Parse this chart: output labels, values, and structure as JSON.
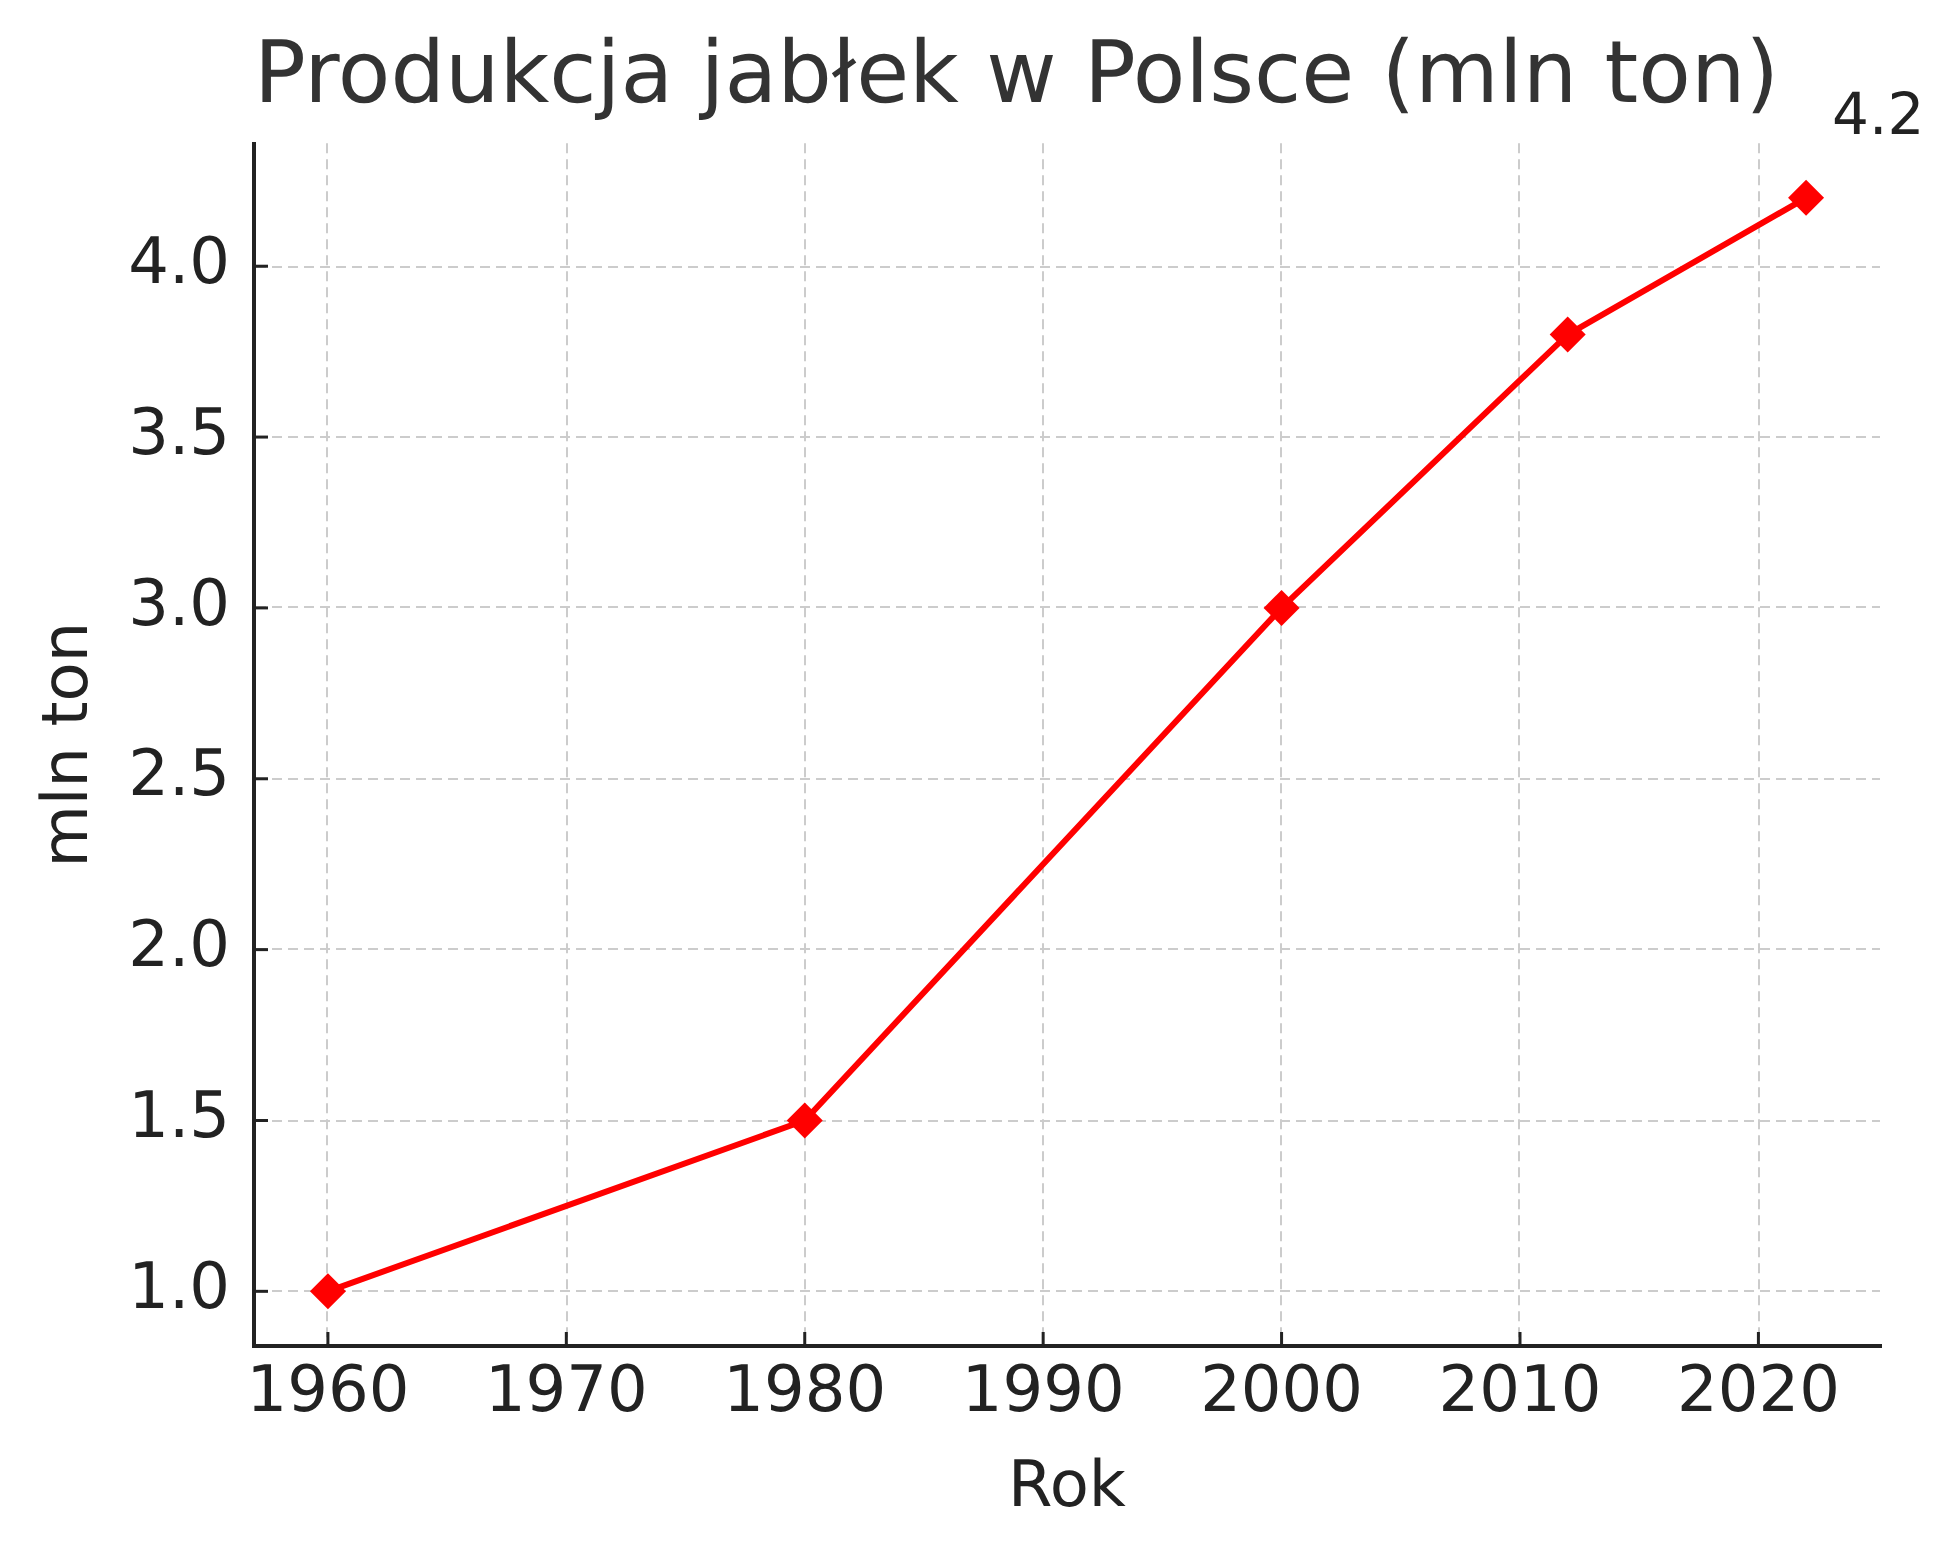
{
  "chart_data": {
    "type": "line",
    "title": "Produkcja jabłek w Polsce (mln ton)",
    "xlabel": "Rok",
    "ylabel": "mln ton",
    "x": [
      1960,
      1980,
      2000,
      2012,
      2022
    ],
    "series": [
      {
        "color": "#ff0000",
        "values": [
          1.0,
          1.5,
          3.0,
          3.8,
          4.2
        ]
      }
    ],
    "xlim": [
      1956.9,
      2025.1
    ],
    "xticks": [
      1960,
      1970,
      1980,
      1990,
      2000,
      2010,
      2020
    ],
    "ylim": [
      0.84,
      4.36
    ],
    "yticks": [
      {
        "value": 1,
        "label": "1.0"
      },
      {
        "value": 1.5,
        "label": "1.5"
      },
      {
        "value": 2,
        "label": "2.0"
      },
      {
        "value": 2.5,
        "label": "2.5"
      },
      {
        "value": 3,
        "label": "3.0"
      },
      {
        "value": 3.5,
        "label": "3.5"
      },
      {
        "value": 4,
        "label": "4.0"
      }
    ],
    "grid": true,
    "marker": "diamond",
    "line_style": "solid",
    "annotations": [
      {
        "text": "4.2",
        "x": 2022,
        "y": 4.2
      }
    ]
  }
}
